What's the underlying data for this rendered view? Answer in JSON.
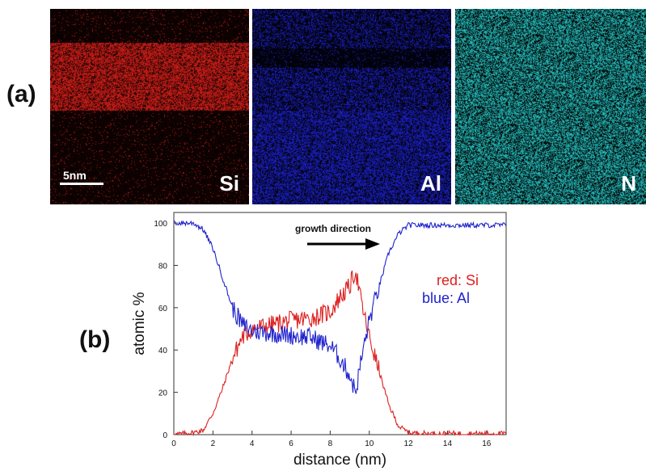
{
  "panel_a": {
    "label": "(a)",
    "scale_bar": "5nm",
    "maps": [
      {
        "element": "Si",
        "color": "#e0201a"
      },
      {
        "element": "Al",
        "color": "#1e23d6"
      },
      {
        "element": "N",
        "color": "#2ad0d0"
      }
    ]
  },
  "panel_b": {
    "label": "(b)"
  },
  "chart_data": {
    "type": "line",
    "title": "",
    "xlabel": "distance (nm)",
    "ylabel": "atomic %",
    "xlim": [
      0,
      17
    ],
    "ylim": [
      0,
      105
    ],
    "xticks": [
      0,
      2,
      4,
      6,
      8,
      10,
      12,
      14,
      16
    ],
    "yticks": [
      0,
      20,
      40,
      60,
      80,
      100
    ],
    "annotation": "growth direction",
    "legend": [
      "red: Si",
      "blue: Al"
    ],
    "colors": {
      "Si": "#dd1f1f",
      "Al": "#1f22cc"
    },
    "series": [
      {
        "name": "Si",
        "x": [
          0,
          1,
          1.5,
          2,
          2.5,
          3,
          3.5,
          4,
          5,
          6,
          7,
          8,
          8.5,
          9,
          9.3,
          9.6,
          10,
          10.5,
          11,
          11.5,
          12,
          13,
          14,
          15,
          16,
          17
        ],
        "y": [
          0,
          1,
          2,
          10,
          22,
          36,
          46,
          50,
          52,
          54,
          55,
          58,
          65,
          70,
          78,
          62,
          46,
          30,
          14,
          4,
          1,
          0.5,
          0.5,
          0.5,
          0.5,
          0.5
        ]
      },
      {
        "name": "Al",
        "x": [
          0,
          1,
          1.5,
          2,
          2.5,
          3,
          3.5,
          4,
          5,
          6,
          7,
          8,
          8.5,
          9,
          9.3,
          9.6,
          10,
          10.5,
          11,
          11.5,
          12,
          13,
          14,
          15,
          16,
          17
        ],
        "y": [
          100,
          100,
          97,
          88,
          74,
          60,
          52,
          49,
          48,
          47,
          46,
          42,
          36,
          28,
          20,
          36,
          54,
          70,
          86,
          95,
          99,
          99,
          99,
          99,
          99,
          99
        ]
      }
    ]
  }
}
